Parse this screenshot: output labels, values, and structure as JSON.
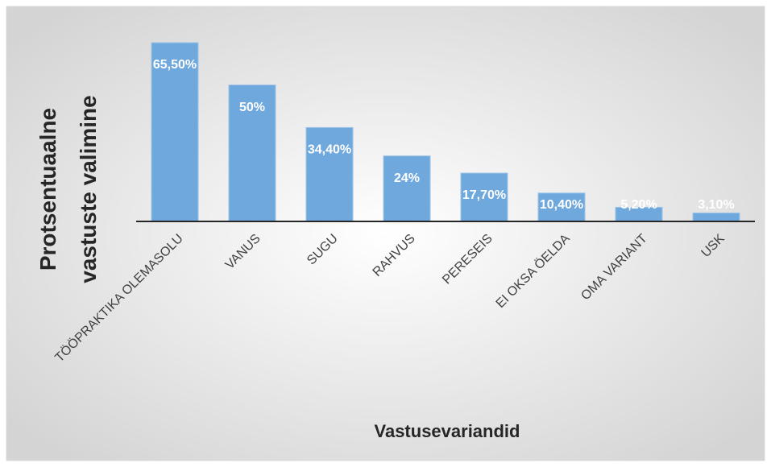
{
  "chart_data": {
    "type": "bar",
    "x_label": "Vastusevariandid",
    "y_label": "Protsentuaalne vastuste valimine",
    "categories": [
      "TÖÖPRAKTIKA OLEMASOLU",
      "VANUS",
      "SUGU",
      "RAHVUS",
      "PERESEIS",
      "EI OKSA ÖELDA",
      "OMA VARIANT",
      "USK"
    ],
    "values": [
      65.5,
      50,
      34.4,
      24,
      17.7,
      10.4,
      5.2,
      3.1
    ],
    "value_labels": [
      "65,50%",
      "50%",
      "34,40%",
      "24%",
      "17,70%",
      "10,40%",
      "5,20%",
      "3,10%"
    ],
    "color": "#6fa8dc"
  }
}
